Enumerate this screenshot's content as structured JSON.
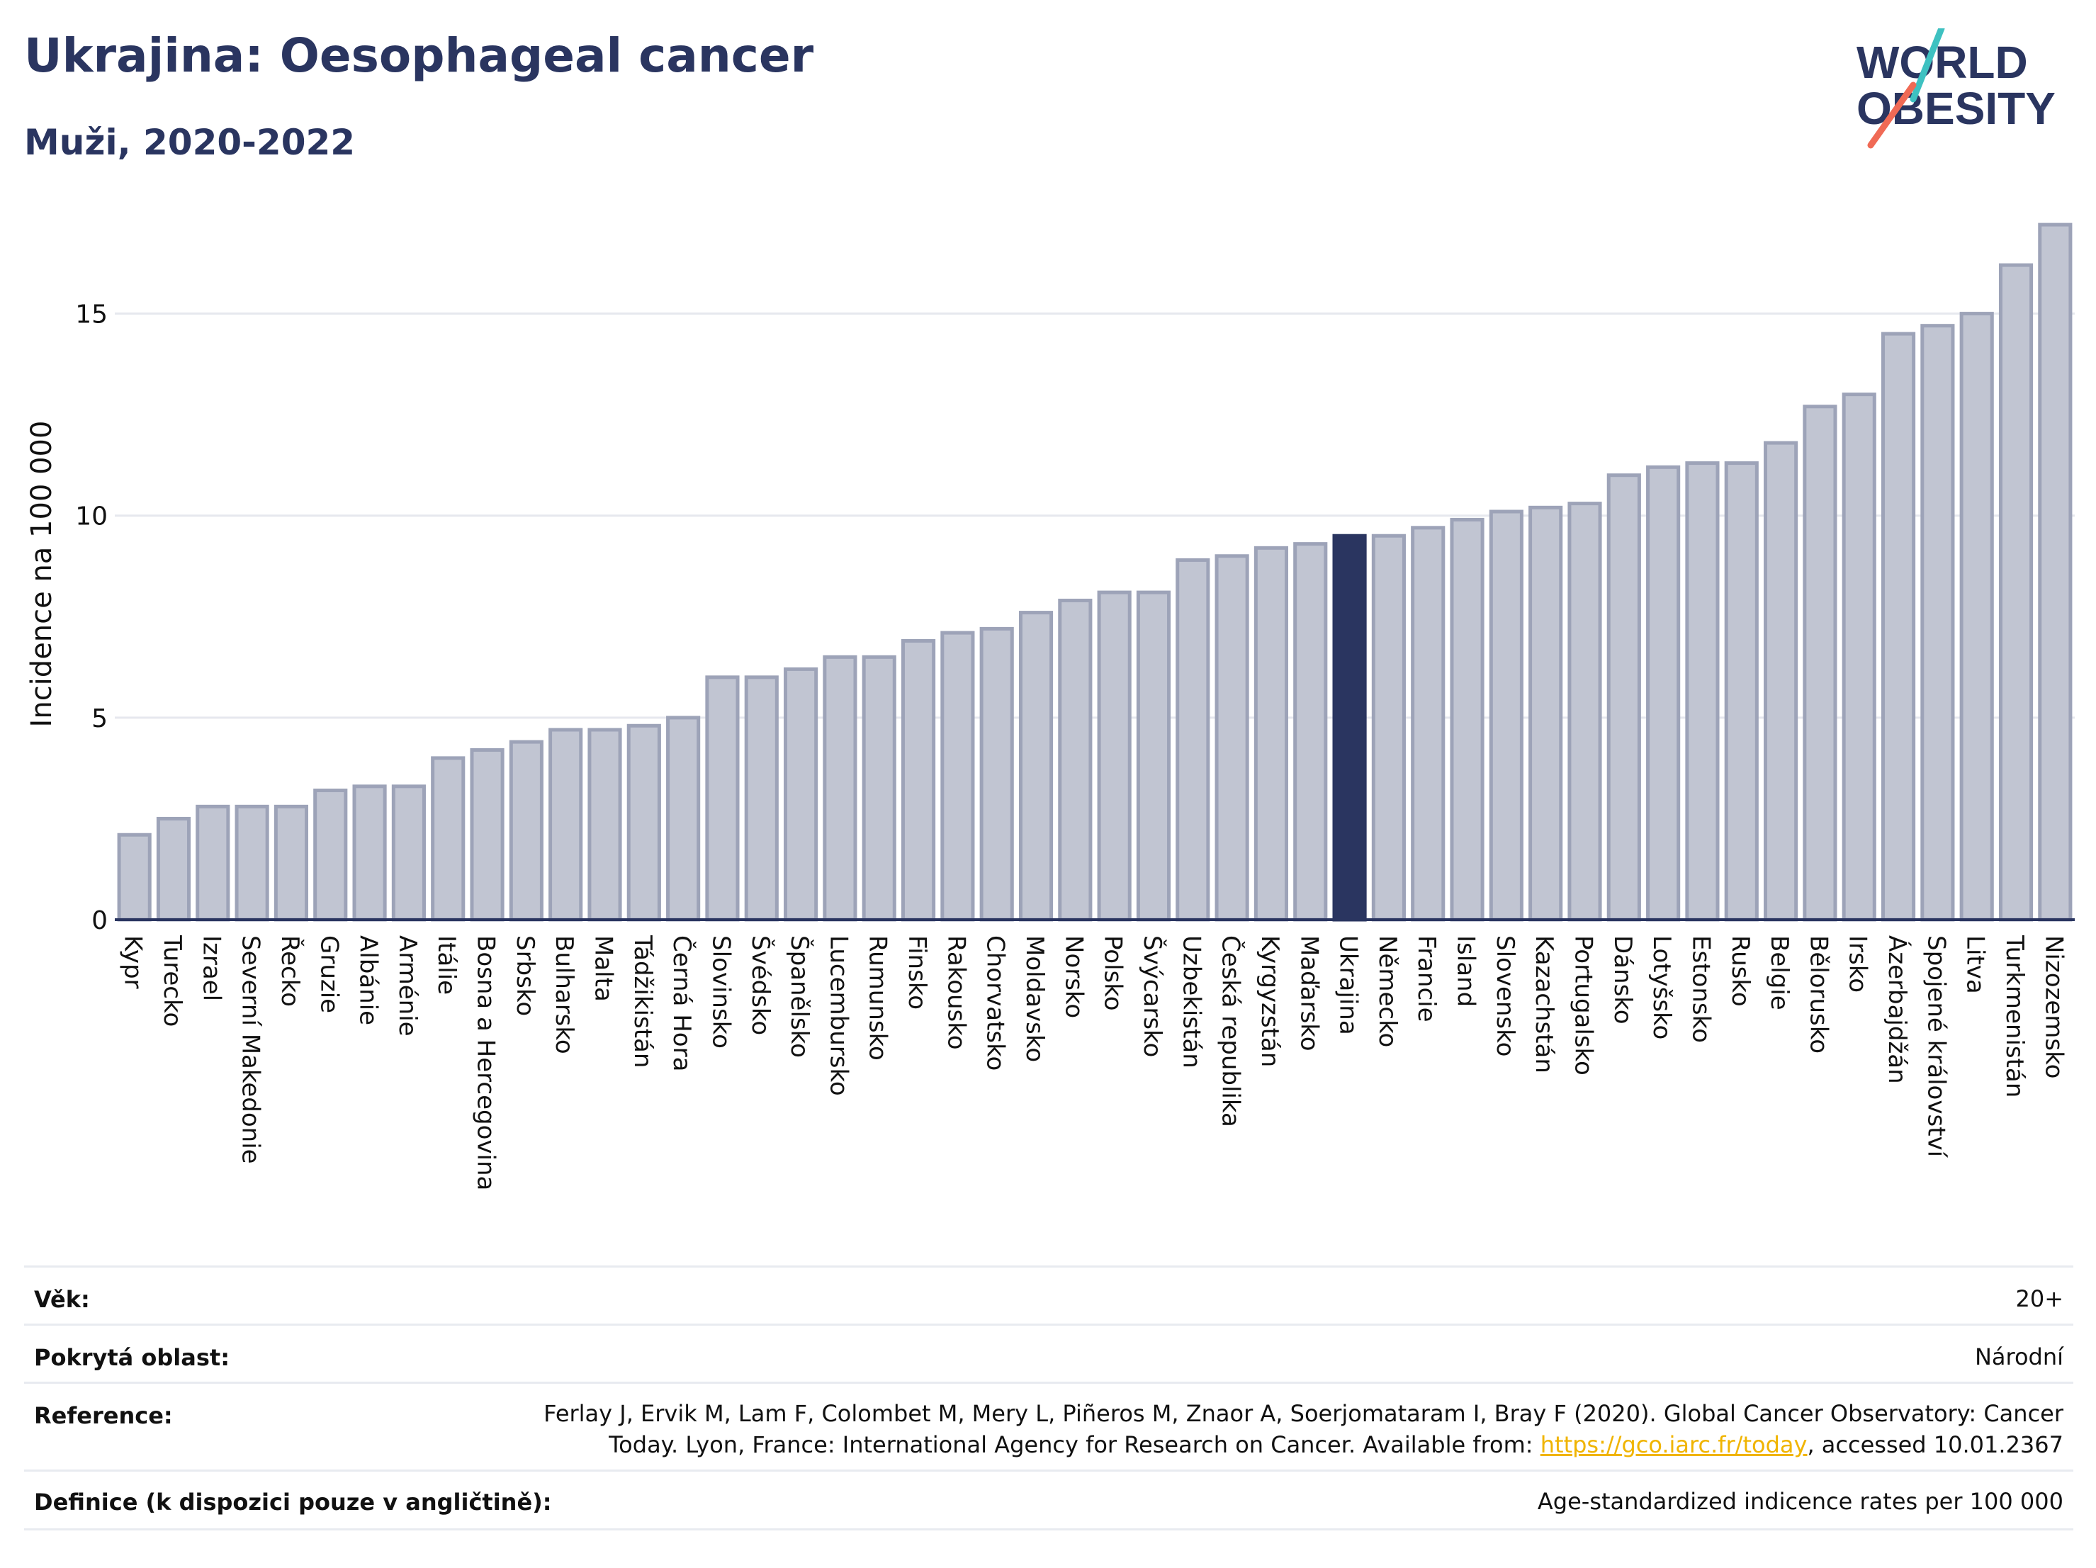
{
  "header": {
    "title": "Ukrajina: Oesophageal cancer",
    "subtitle": "Muži, 2020-2022",
    "logo_line1": "WORLD",
    "logo_line2": "OBESITY"
  },
  "colors": {
    "bar": "#c1c5d2",
    "bar_stroke": "#9da3b8",
    "highlight": "#2a3560",
    "grid": "#e6e8ee",
    "logo_teal": "#3ec1c1",
    "logo_red": "#f06a55"
  },
  "chart_data": {
    "type": "bar",
    "ylabel": "Incidence na 100 000",
    "ylim": [
      0,
      17.5
    ],
    "yticks": [
      0,
      5,
      10,
      15
    ],
    "highlight": "Ukrajina",
    "categories": [
      "Kypr",
      "Turecko",
      "Izrael",
      "Severní Makedonie",
      "Řecko",
      "Gruzie",
      "Albánie",
      "Arménie",
      "Itálie",
      "Bosna a Hercegovina",
      "Srbsko",
      "Bulharsko",
      "Malta",
      "Tádžikistán",
      "Černá Hora",
      "Slovinsko",
      "Švédsko",
      "Španělsko",
      "Lucembursko",
      "Rumunsko",
      "Finsko",
      "Rakousko",
      "Chorvatsko",
      "Moldavsko",
      "Norsko",
      "Polsko",
      "Švýcarsko",
      "Uzbekistán",
      "Česká republika",
      "Kyrgyzstán",
      "Maďarsko",
      "Ukrajina",
      "Německo",
      "Francie",
      "Island",
      "Slovensko",
      "Kazachstán",
      "Portugalsko",
      "Dánsko",
      "Lotyšsko",
      "Estonsko",
      "Rusko",
      "Belgie",
      "Bělorusko",
      "Irsko",
      "Ázerbajdžán",
      "Spojené království",
      "Litva",
      "Turkmenistán",
      "Nizozemsko"
    ],
    "values": [
      2.1,
      2.5,
      2.8,
      2.8,
      2.8,
      3.2,
      3.3,
      3.3,
      4.0,
      4.2,
      4.4,
      4.7,
      4.7,
      4.8,
      5.0,
      6.0,
      6.0,
      6.2,
      6.5,
      6.5,
      6.9,
      7.1,
      7.2,
      7.6,
      7.9,
      8.1,
      8.1,
      8.9,
      9.0,
      9.2,
      9.3,
      9.5,
      9.5,
      9.7,
      9.9,
      10.1,
      10.2,
      10.3,
      11.0,
      11.2,
      11.3,
      11.3,
      11.8,
      12.7,
      13.0,
      14.5,
      14.7,
      15.0,
      16.2,
      17.2
    ]
  },
  "info": {
    "age_label": "Věk:",
    "age_value": "20+",
    "area_label": "Pokrytá oblast:",
    "area_value": "Národní",
    "ref_label": "Reference:",
    "ref_line1": "Ferlay J, Ervik M, Lam F, Colombet M, Mery L, Piñeros M, Znaor A, Soerjomataram I, Bray F (2020). Global Cancer Observatory: Cancer",
    "ref_line2_pre": "Today. Lyon, France: International Agency for Research on Cancer. Available from: ",
    "ref_link": "https://gco.iarc.fr/today",
    "ref_line2_post": ", accessed 10.01.2367",
    "def_label": "Definice (k dispozici pouze v angličtině):",
    "def_value": "Age-standardized indicence rates per 100 000"
  }
}
